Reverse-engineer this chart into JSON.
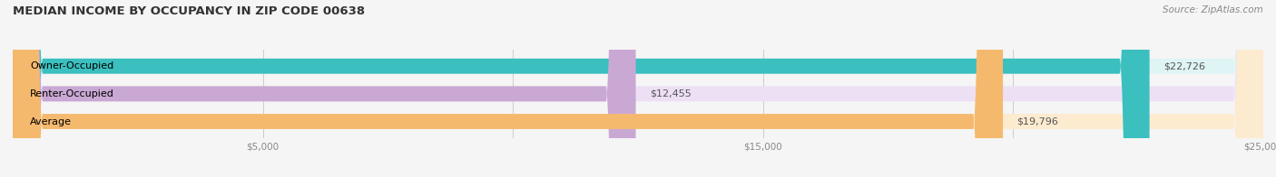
{
  "title": "MEDIAN INCOME BY OCCUPANCY IN ZIP CODE 00638",
  "source": "Source: ZipAtlas.com",
  "categories": [
    "Owner-Occupied",
    "Renter-Occupied",
    "Average"
  ],
  "values": [
    22726,
    12455,
    19796
  ],
  "labels": [
    "$22,726",
    "$12,455",
    "$19,796"
  ],
  "bar_colors": [
    "#3bbfbf",
    "#c9a8d4",
    "#f5b96e"
  ],
  "bar_bg_colors": [
    "#dff4f4",
    "#ede0f5",
    "#fdebd0"
  ],
  "xlim": [
    0,
    25000
  ],
  "xticks": [
    0,
    5000,
    10000,
    15000,
    20000,
    25000
  ],
  "xticklabels": [
    "",
    "$5,000",
    "",
    "$15,000",
    "",
    "$25,000"
  ],
  "bar_height": 0.55,
  "figsize": [
    14.06,
    1.96
  ],
  "dpi": 100,
  "title_fontsize": 9.5,
  "label_fontsize": 8,
  "tick_fontsize": 7.5,
  "source_fontsize": 7.5,
  "bg_color": "#f5f5f5"
}
